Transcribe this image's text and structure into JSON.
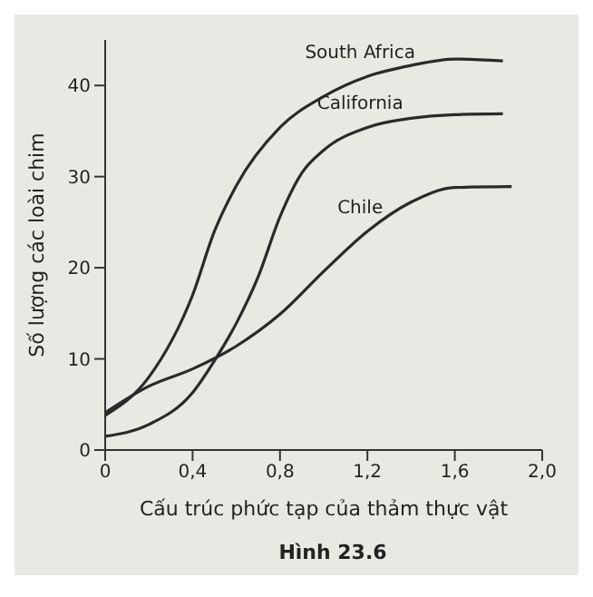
{
  "chart_data": {
    "type": "line",
    "xlabel": "Cấu trúc phức tạp của thảm thực vật",
    "ylabel": "Số lượng các loài chim",
    "annotations": [
      "Hình 23.6"
    ],
    "xlim": [
      0,
      2.0
    ],
    "xticks": [
      0,
      {
        "value": 0.4,
        "label": "0,4"
      },
      {
        "value": 0.8,
        "label": "0,8"
      },
      {
        "value": 1.2,
        "label": "1,2"
      },
      {
        "value": 1.6,
        "label": "1,6"
      },
      {
        "value": 2.0,
        "label": "2,0"
      }
    ],
    "ylim": [
      0,
      45
    ],
    "yticks": [
      0,
      10,
      20,
      30,
      40
    ],
    "grid": false,
    "legend": false,
    "marker": "none",
    "line_style": "solid",
    "series": [
      {
        "name": "South Africa",
        "color": "#2a2a2a",
        "x": [
          0,
          0.2,
          0.4,
          0.5,
          0.6,
          0.8,
          1.0,
          1.2,
          1.4,
          1.6,
          1.82
        ],
        "values": [
          3.8,
          8,
          17,
          24,
          29,
          35.4,
          38.8,
          41,
          42.2,
          42.9,
          42.7
        ]
      },
      {
        "name": "California",
        "color": "#2a2a2a",
        "x": [
          0,
          0.2,
          0.4,
          0.5,
          0.6,
          0.7,
          0.8,
          0.9,
          1.0,
          1.2,
          1.4,
          1.6,
          1.82
        ],
        "values": [
          1.5,
          2.8,
          6.3,
          9.8,
          13.9,
          19,
          25.6,
          30.4,
          32.9,
          35.4,
          36.4,
          36.8,
          36.9
        ]
      },
      {
        "name": "Chile",
        "color": "#2a2a2a",
        "x": [
          0,
          0.2,
          0.4,
          0.6,
          0.8,
          1.0,
          1.2,
          1.4,
          1.6,
          1.86
        ],
        "values": [
          4.1,
          7,
          8.9,
          11.4,
          14.9,
          19.6,
          24,
          27.2,
          28.8,
          28.9
        ]
      }
    ]
  }
}
